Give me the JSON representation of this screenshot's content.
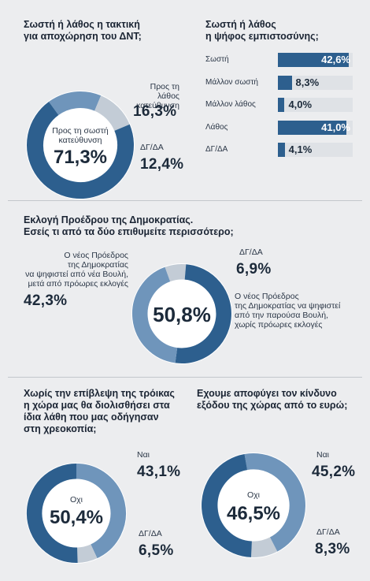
{
  "chart_data": [
    {
      "type": "pie",
      "title": "Σωστή ή λάθος η τακτική για αποχώρηση του ΔΝΤ;",
      "slices": [
        {
          "label": "Προς τη σωστή κατεύθυνση",
          "value": 71.3,
          "display": "71,3%",
          "color": "#2d5f8e"
        },
        {
          "label": "Προς τη λάθος κατεύθυνση",
          "value": 16.3,
          "display": "16,3%",
          "color": "#6f95bb"
        },
        {
          "label": "ΔΓ/ΔΑ",
          "value": 12.4,
          "display": "12,4%",
          "color": "#c3ccd6"
        }
      ]
    },
    {
      "type": "bar",
      "title": "Σωστή ή λάθος η ψήφος εμπιστοσύνης;",
      "categories": [
        "Σωστή",
        "Μάλλον σωστή",
        "Μάλλον λάθος",
        "Λάθος",
        "ΔΓ/ΔΑ"
      ],
      "values": [
        42.6,
        8.3,
        4.0,
        41.0,
        4.1
      ],
      "displays": [
        "42,6%",
        "8,3%",
        "4,0%",
        "41,0%",
        "4,1%"
      ],
      "xlim": [
        0,
        45
      ],
      "color": "#2d5f8e"
    },
    {
      "type": "pie",
      "title": "Εκλογή Προέδρου της Δημοκρατίας. Εσείς τι από τα δύο επιθυμείτε περισσότερο;",
      "slices": [
        {
          "label": "Ο νέος Πρόεδρος της Δημοκρατίας να ψηφιστεί από την παρούσα Βουλή, χωρίς πρόωρες εκλογές",
          "value": 50.8,
          "display": "50,8%",
          "color": "#2d5f8e"
        },
        {
          "label": "Ο νέος Πρόεδρος της Δημοκρατίας να ψηφιστεί από νέα Βουλή, μετά από πρόωρες εκλογές",
          "value": 42.3,
          "display": "42,3%",
          "color": "#6f95bb"
        },
        {
          "label": "ΔΓ/ΔΑ",
          "value": 6.9,
          "display": "6,9%",
          "color": "#c3ccd6"
        }
      ]
    },
    {
      "type": "pie",
      "title": "Χωρίς την επίβλεψη της τρόικας η χώρα μας θα διολισθήσει στα ίδια λάθη που μας οδήγησαν στη χρεοκοπία;",
      "slices": [
        {
          "label": "Οχι",
          "value": 50.4,
          "display": "50,4%",
          "color": "#2d5f8e"
        },
        {
          "label": "Ναι",
          "value": 43.1,
          "display": "43,1%",
          "color": "#6f95bb"
        },
        {
          "label": "ΔΓ/ΔΑ",
          "value": 6.5,
          "display": "6,5%",
          "color": "#c3ccd6"
        }
      ]
    },
    {
      "type": "pie",
      "title": "Εχουμε αποφύγει τον κίνδυνο εξόδου της χώρας από το ευρώ;",
      "slices": [
        {
          "label": "Οχι",
          "value": 46.5,
          "display": "46,5%",
          "color": "#2d5f8e"
        },
        {
          "label": "Ναι",
          "value": 45.2,
          "display": "45,2%",
          "color": "#6f95bb"
        },
        {
          "label": "ΔΓ/ΔΑ",
          "value": 8.3,
          "display": "8,3%",
          "color": "#c3ccd6"
        }
      ]
    }
  ],
  "text": {
    "c1_title": [
      "Σωστή ή λάθος η τακτική",
      "για αποχώρηση του ΔΝΤ;"
    ],
    "c1_wrong_label": [
      "Προς τη λάθος",
      "κατεύθυνση"
    ],
    "c1_dk_label": "ΔΓ/ΔΑ",
    "c1_center_label": [
      "Προς τη σωστή",
      "κατεύθυνση"
    ],
    "c2_title": [
      "Σωστή ή λάθος",
      "η ψήφος εμπιστοσύνης;"
    ],
    "c3_title": [
      "Εκλογή Προέδρου της Δημοκρατίας.",
      "Εσείς τι από τα δύο επιθυμείτε περισσότερο;"
    ],
    "c3_left_label": [
      "Ο νέος Πρόεδρος",
      "της Δημοκρατίας",
      "να ψηφιστεί από νέα Βουλή,",
      "μετά από πρόωρες εκλογές"
    ],
    "c3_right_label": [
      "Ο νέος Πρόεδρος",
      "της Δημοκρατίας να ψηφιστεί",
      "από την παρούσα Βουλή,",
      "χωρίς πρόωρες εκλογές"
    ],
    "c3_dk_label": "ΔΓ/ΔΑ",
    "c4_title": [
      "Χωρίς την επίβλεψη της τρόικας",
      "η χώρα μας θα διολισθήσει στα",
      "ίδια λάθη που μας οδήγησαν",
      "στη χρεοκοπία;"
    ],
    "c4_center_label": "Οχι",
    "c4_yes_label": "Ναι",
    "c4_dk_label": "ΔΓ/ΔΑ",
    "c5_title": [
      "Εχουμε αποφύγει τον κίνδυνο",
      "εξόδου της χώρας από το ευρώ;"
    ],
    "c5_center_label": "Οχι",
    "c5_yes_label": "Ναι",
    "c5_dk_label": "ΔΓ/ΔΑ"
  }
}
